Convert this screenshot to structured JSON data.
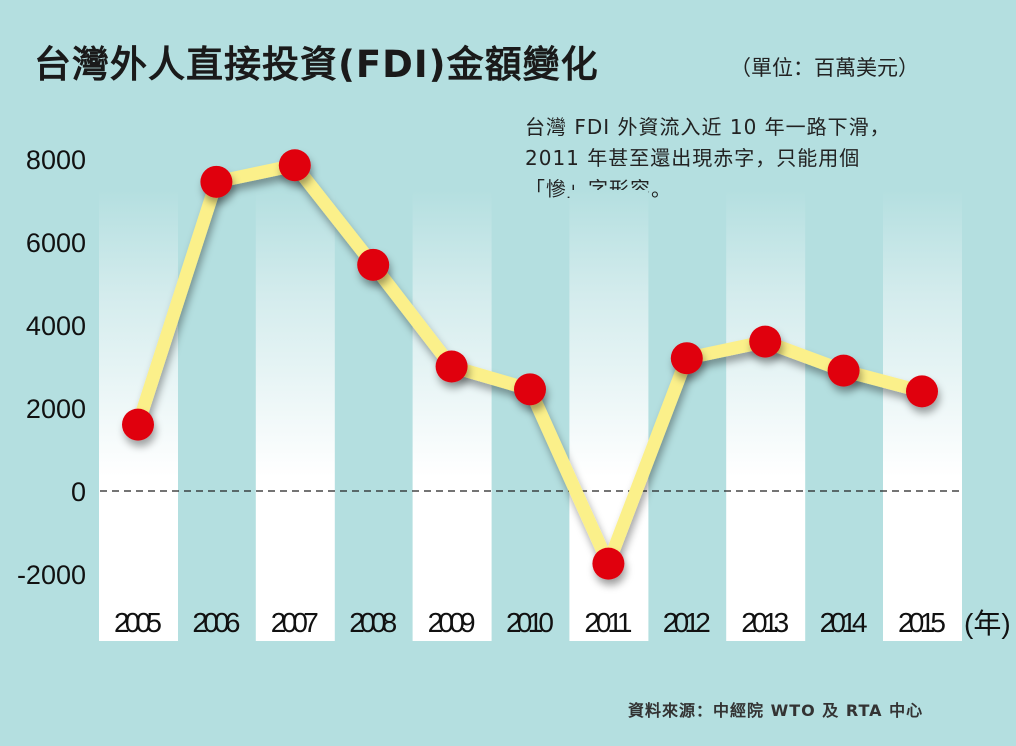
{
  "title": "台灣外人直接投資(FDI)金額變化",
  "unit": "（單位：百萬美元）",
  "note": "台灣 FDI 外資流入近 10 年一路下滑，\n2011 年甚至還出現赤字，只能用個\n「慘」字形容。",
  "source": "資料來源：中經院 WTO 及 RTA 中心",
  "chart_data": {
    "type": "line",
    "title": "台灣外人直接投資(FDI)金額變化",
    "xlabel": "(年)",
    "ylabel": "",
    "categories": [
      "2005",
      "2006",
      "2007",
      "2008",
      "2009",
      "2010",
      "2011",
      "2012",
      "2013",
      "2014",
      "2015"
    ],
    "values": [
      1600,
      7450,
      7850,
      5450,
      3000,
      2450,
      -1750,
      3200,
      3600,
      2900,
      2400
    ],
    "yticks": [
      "8000",
      "6000",
      "4000",
      "2000",
      "0",
      "-2000"
    ],
    "ylim": [
      -2500,
      8500
    ],
    "zero_line": "dashed",
    "colors": {
      "line": "#fbf08a",
      "marker": "#e0000f",
      "background": "#b4dfe0",
      "stripe": "#ffffff"
    }
  }
}
